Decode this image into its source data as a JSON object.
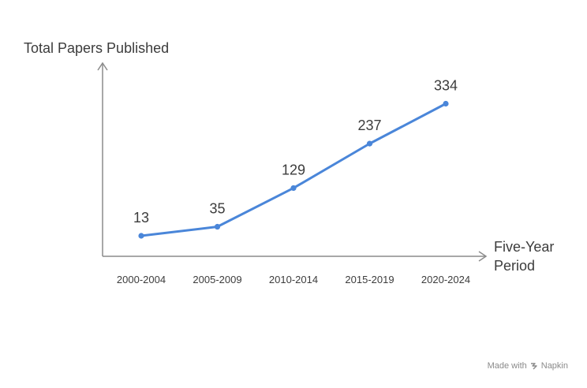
{
  "chart_data": {
    "type": "line",
    "ylabel": "Total Papers Published",
    "xlabel": [
      "Five-Year",
      "Period"
    ],
    "categories": [
      "2000-2004",
      "2005-2009",
      "2010-2014",
      "2015-2019",
      "2020-2024"
    ],
    "values": [
      13,
      35,
      129,
      237,
      334
    ],
    "data_labels": [
      "13",
      "35",
      "129",
      "237",
      "334"
    ],
    "line_color": "#4a86d9",
    "axis_color": "#8c8c8c",
    "grid": false,
    "legend": false
  },
  "footer": {
    "made_with": "Made with",
    "brand": "Napkin"
  }
}
